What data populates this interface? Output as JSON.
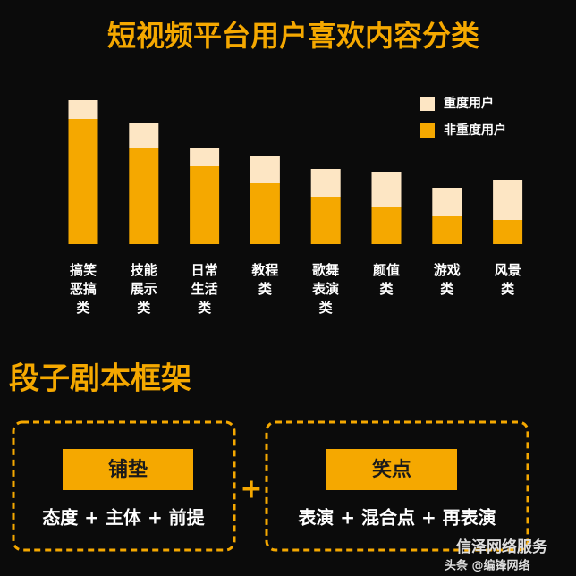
{
  "chart_data": {
    "type": "stacked-bar",
    "title": "短视频平台用户喜欢内容分类",
    "categories": [
      "搞笑恶搞类",
      "技能展示类",
      "日常生活类",
      "教程类",
      "歌舞表演类",
      "颜值类",
      "游戏类",
      "风景类"
    ],
    "series": [
      {
        "name": "非重度用户",
        "color": "#f5a800",
        "values": [
          140,
          108,
          87,
          68,
          53,
          42,
          31,
          27
        ]
      },
      {
        "name": "重度用户",
        "color": "#fde6c4",
        "values": [
          21,
          28,
          20,
          31,
          31,
          39,
          32,
          45
        ]
      }
    ],
    "ylim": [
      0,
      170
    ],
    "legend": "top-right"
  },
  "framework": {
    "title": "段子剧本框架",
    "boxes": [
      {
        "label": "铺垫",
        "formula": "态度 + 主体 + 前提"
      },
      {
        "label": "笑点",
        "formula": "表演 + 混合点 + 再表演"
      }
    ],
    "connector": "+"
  },
  "watermark": {
    "account": "信泽网络服务",
    "source": "头条 @编锋网络"
  }
}
